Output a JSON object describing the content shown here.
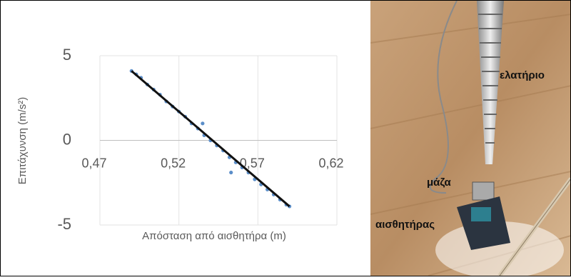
{
  "chart_data": {
    "type": "scatter",
    "x_label": "Απόσταση από αισθητήρα (m)",
    "y_label": "Επιτάχυνση (m/s²)",
    "x": [
      0.49,
      0.493,
      0.496,
      0.5,
      0.504,
      0.508,
      0.512,
      0.516,
      0.52,
      0.524,
      0.528,
      0.532,
      0.535,
      0.536,
      0.54,
      0.544,
      0.548,
      0.552,
      0.553,
      0.556,
      0.56,
      0.564,
      0.568,
      0.572,
      0.576,
      0.58,
      0.584,
      0.588,
      0.59
    ],
    "values": [
      4.1,
      3.9,
      3.7,
      3.3,
      3.0,
      2.7,
      2.3,
      2.0,
      1.7,
      1.4,
      1.0,
      0.7,
      1.0,
      0.3,
      0.0,
      -0.3,
      -0.6,
      -1.0,
      -1.9,
      -1.3,
      -1.6,
      -1.9,
      -2.3,
      -2.6,
      -2.9,
      -3.2,
      -3.5,
      -3.8,
      -3.9
    ],
    "color": "#5b8ec9",
    "trendline": {
      "x": [
        0.49,
        0.59
      ],
      "values": [
        4.1,
        -3.9
      ],
      "color": "#111111"
    },
    "xlim": [
      0.47,
      0.62
    ],
    "xticks": [
      {
        "value": 0.47,
        "label": "0,47"
      },
      {
        "value": 0.52,
        "label": "0,52"
      },
      {
        "value": 0.57,
        "label": "0,57"
      },
      {
        "value": 0.62,
        "label": "0,62"
      }
    ],
    "ylim": [
      -5,
      5
    ],
    "yticks": [
      -5,
      0,
      5
    ],
    "grid": true
  },
  "photo": {
    "labels": [
      "ελατήριο",
      "μάζα",
      "αισθητήρας"
    ]
  }
}
